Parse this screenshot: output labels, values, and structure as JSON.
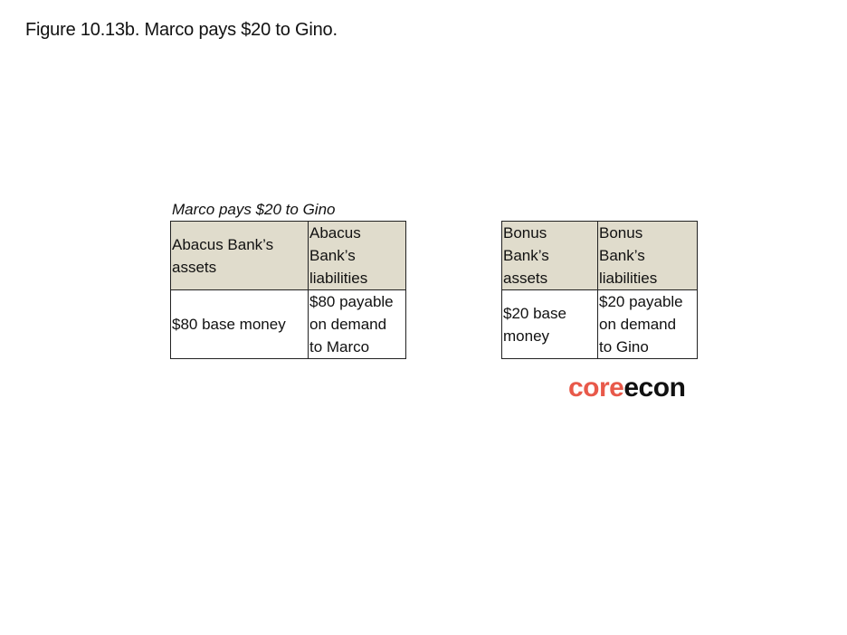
{
  "figure_title": "Figure 10.13b. Marco pays $20 to Gino.",
  "caption": "Marco pays $20 to Gino",
  "abacus": {
    "assets_header": "Abacus Bank’s\nassets",
    "liabilities_header": "Abacus\nBank’s\nliabilities",
    "assets_value": "$80 base money",
    "liabilities_value": "$80 payable\non demand\nto Marco"
  },
  "bonus": {
    "assets_header": "Bonus\nBank’s\nassets",
    "liabilities_header": "Bonus\nBank’s\nliabilities",
    "assets_value": "$20 base\nmoney",
    "liabilities_value": "$20 payable\non demand\nto Gino"
  },
  "logo": {
    "part1": "core",
    "part2": "econ",
    "color_part1": "#e8594a",
    "color_part2": "#111111"
  },
  "colors": {
    "header_fill": "#e0dccc",
    "border": "#222222"
  }
}
